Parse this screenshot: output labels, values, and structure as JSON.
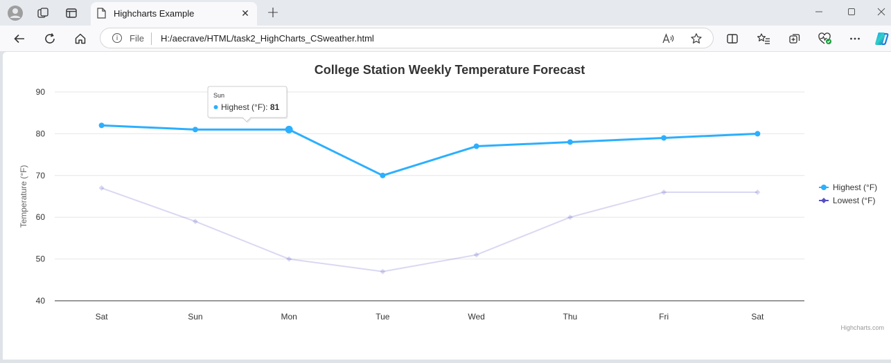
{
  "browser": {
    "tab_title": "Highcharts Example",
    "address_label": "File",
    "address_url": "H:/aecrave/HTML/task2_HighCharts_CSweather.html"
  },
  "chart_data": {
    "type": "line",
    "title": "College Station Weekly Temperature Forecast",
    "categories": [
      "Sat",
      "Sun",
      "Mon",
      "Tue",
      "Wed",
      "Thu",
      "Fri",
      "Sat"
    ],
    "ylabel": "Temperature (°F)",
    "ylim": [
      40,
      90
    ],
    "yticks": [
      40,
      50,
      60,
      70,
      80,
      90
    ],
    "grid": true,
    "legend_position": "right",
    "series": [
      {
        "name": "Highest (°F)",
        "values": [
          82,
          81,
          81,
          70,
          77,
          78,
          79,
          80
        ],
        "color": "#2caffe"
      },
      {
        "name": "Lowest (°F)",
        "values": [
          67,
          59,
          50,
          47,
          51,
          60,
          66,
          66
        ],
        "color": "#544fc5"
      }
    ],
    "tooltip": {
      "category": "Sun",
      "series_name": "Highest (°F)",
      "value": "81",
      "sep": ": "
    },
    "credits": "Highcharts.com"
  }
}
